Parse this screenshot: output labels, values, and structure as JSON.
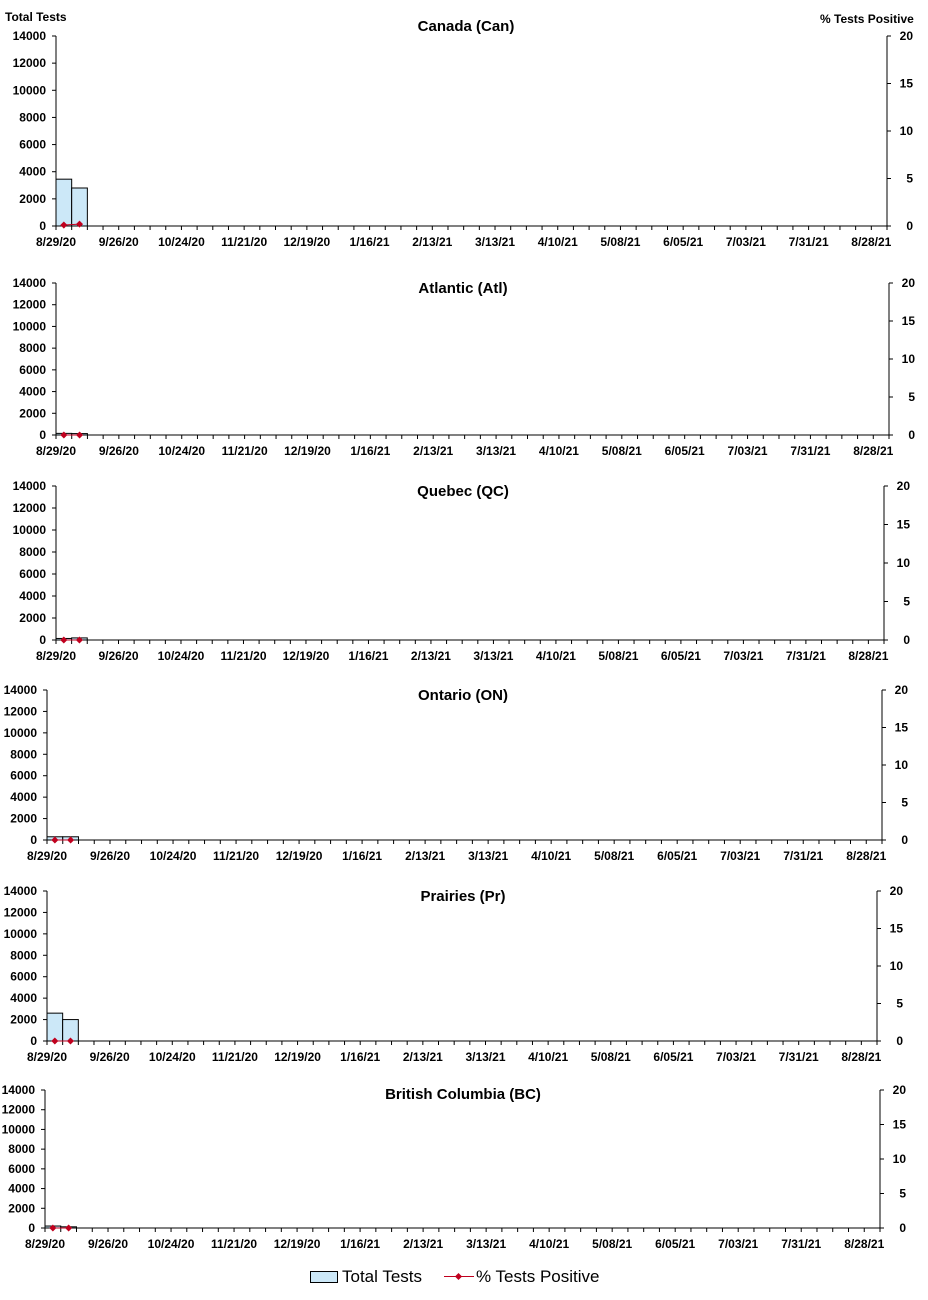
{
  "left_axis_title": "Total Tests",
  "right_axis_title": "% Tests Positive",
  "legend": {
    "bar_label": "Total Tests",
    "line_label": "% Tests Positive",
    "bar_color": "#cce8f8",
    "line_color": "#c0001e"
  },
  "chart_data": [
    {
      "type": "bar",
      "title": "Canada (Can)",
      "ylim": [
        0,
        14000
      ],
      "y2lim": [
        0,
        20
      ],
      "yticks": [
        "0",
        "2000",
        "4000",
        "6000",
        "8000",
        "10000",
        "12000",
        "14000"
      ],
      "y2ticks": [
        "0",
        "5",
        "10",
        "15",
        "20"
      ],
      "x_tick_labels": [
        "8/29/20",
        "9/26/20",
        "10/24/20",
        "11/21/20",
        "12/19/20",
        "1/16/21",
        "2/13/21",
        "3/13/21",
        "4/10/21",
        "5/08/21",
        "6/05/21",
        "7/03/21",
        "7/31/21",
        "8/28/21"
      ],
      "series": [
        {
          "name": "Total Tests",
          "axis": "left",
          "values": [
            3450,
            2800
          ]
        },
        {
          "name": "% Tests Positive",
          "axis": "right",
          "values": [
            0.1,
            0.2
          ]
        }
      ]
    },
    {
      "type": "bar",
      "title": "Atlantic (Atl)",
      "ylim": [
        0,
        14000
      ],
      "y2lim": [
        0,
        20
      ],
      "yticks": [
        "0",
        "2000",
        "4000",
        "6000",
        "8000",
        "10000",
        "12000",
        "14000"
      ],
      "y2ticks": [
        "0",
        "5",
        "10",
        "15",
        "20"
      ],
      "x_tick_labels": [
        "8/29/20",
        "9/26/20",
        "10/24/20",
        "11/21/20",
        "12/19/20",
        "1/16/21",
        "2/13/21",
        "3/13/21",
        "4/10/21",
        "5/08/21",
        "6/05/21",
        "7/03/21",
        "7/31/21",
        "8/28/21"
      ],
      "series": [
        {
          "name": "Total Tests",
          "axis": "left",
          "values": [
            150,
            130
          ]
        },
        {
          "name": "% Tests Positive",
          "axis": "right",
          "values": [
            0,
            0
          ]
        }
      ]
    },
    {
      "type": "bar",
      "title": "Quebec (QC)",
      "ylim": [
        0,
        14000
      ],
      "y2lim": [
        0,
        20
      ],
      "yticks": [
        "0",
        "2000",
        "4000",
        "6000",
        "8000",
        "10000",
        "12000",
        "14000"
      ],
      "y2ticks": [
        "0",
        "5",
        "10",
        "15",
        "20"
      ],
      "x_tick_labels": [
        "8/29/20",
        "9/26/20",
        "10/24/20",
        "11/21/20",
        "12/19/20",
        "1/16/21",
        "2/13/21",
        "3/13/21",
        "4/10/21",
        "5/08/21",
        "6/05/21",
        "7/03/21",
        "7/31/21",
        "8/28/21"
      ],
      "series": [
        {
          "name": "Total Tests",
          "axis": "left",
          "values": [
            140,
            190
          ]
        },
        {
          "name": "% Tests Positive",
          "axis": "right",
          "values": [
            0,
            0
          ]
        }
      ]
    },
    {
      "type": "bar",
      "title": "Ontario (ON)",
      "ylim": [
        0,
        14000
      ],
      "y2lim": [
        0,
        20
      ],
      "yticks": [
        "0",
        "2000",
        "4000",
        "6000",
        "8000",
        "10000",
        "12000",
        "14000"
      ],
      "y2ticks": [
        "0",
        "5",
        "10",
        "15",
        "20"
      ],
      "x_tick_labels": [
        "8/29/20",
        "9/26/20",
        "10/24/20",
        "11/21/20",
        "12/19/20",
        "1/16/21",
        "2/13/21",
        "3/13/21",
        "4/10/21",
        "5/08/21",
        "6/05/21",
        "7/03/21",
        "7/31/21",
        "8/28/21"
      ],
      "series": [
        {
          "name": "Total Tests",
          "axis": "left",
          "values": [
            300,
            300
          ]
        },
        {
          "name": "% Tests Positive",
          "axis": "right",
          "values": [
            0,
            0
          ]
        }
      ]
    },
    {
      "type": "bar",
      "title": "Prairies (Pr)",
      "ylim": [
        0,
        14000
      ],
      "y2lim": [
        0,
        20
      ],
      "yticks": [
        "0",
        "2000",
        "4000",
        "6000",
        "8000",
        "10000",
        "12000",
        "14000"
      ],
      "y2ticks": [
        "0",
        "5",
        "10",
        "15",
        "20"
      ],
      "x_tick_labels": [
        "8/29/20",
        "9/26/20",
        "10/24/20",
        "11/21/20",
        "12/19/20",
        "1/16/21",
        "2/13/21",
        "3/13/21",
        "4/10/21",
        "5/08/21",
        "6/05/21",
        "7/03/21",
        "7/31/21",
        "8/28/21"
      ],
      "series": [
        {
          "name": "Total Tests",
          "axis": "left",
          "values": [
            2600,
            2000
          ]
        },
        {
          "name": "% Tests Positive",
          "axis": "right",
          "values": [
            0,
            0
          ]
        }
      ]
    },
    {
      "type": "bar",
      "title": "British Columbia (BC)",
      "ylim": [
        0,
        14000
      ],
      "y2lim": [
        0,
        20
      ],
      "yticks": [
        "0",
        "2000",
        "4000",
        "6000",
        "8000",
        "10000",
        "12000",
        "14000"
      ],
      "y2ticks": [
        "0",
        "5",
        "10",
        "15",
        "20"
      ],
      "x_tick_labels": [
        "8/29/20",
        "9/26/20",
        "10/24/20",
        "11/21/20",
        "12/19/20",
        "1/16/21",
        "2/13/21",
        "3/13/21",
        "4/10/21",
        "5/08/21",
        "6/05/21",
        "7/03/21",
        "7/31/21",
        "8/28/21"
      ],
      "series": [
        {
          "name": "Total Tests",
          "axis": "left",
          "values": [
            200,
            120
          ]
        },
        {
          "name": "% Tests Positive",
          "axis": "right",
          "values": [
            0,
            0
          ]
        }
      ]
    }
  ]
}
